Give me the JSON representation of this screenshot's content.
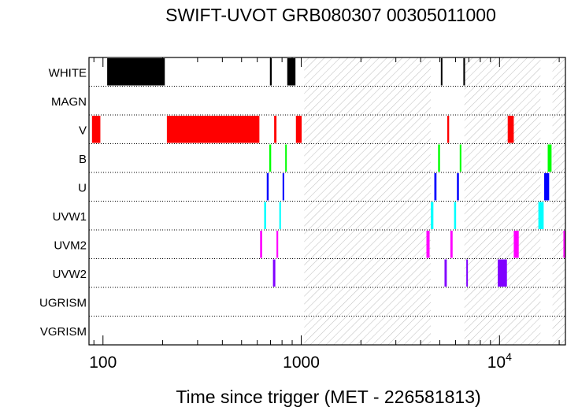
{
  "chart_data": {
    "type": "timeline",
    "title": "SWIFT-UVOT GRB080307 00305011000",
    "xlabel": "Time since trigger (MET - 226581813)",
    "xscale": "log",
    "xlim": [
      85,
      21500
    ],
    "xticks": [
      {
        "value": 100,
        "label": "100"
      },
      {
        "value": 1000,
        "label": "1000"
      },
      {
        "value": 10000,
        "label": "10",
        "exp": "4"
      }
    ],
    "rows": [
      "WHITE",
      "MAGN",
      "V",
      "B",
      "U",
      "UVW1",
      "UVM2",
      "UVW2",
      "UGRISM",
      "VGRISM"
    ],
    "shaded_intervals": [
      [
        1035,
        4500
      ],
      [
        6650,
        16100
      ],
      [
        18500,
        21500
      ]
    ],
    "exposures": [
      {
        "filter": "WHITE",
        "color": "#000000",
        "intervals": [
          [
            105,
            205
          ],
          [
            695,
            710
          ],
          [
            850,
            935
          ],
          [
            5060,
            5150
          ],
          [
            6570,
            6700
          ]
        ]
      },
      {
        "filter": "V",
        "color": "#ff0000",
        "intervals": [
          [
            88,
            97
          ],
          [
            210,
            615
          ],
          [
            730,
            750
          ],
          [
            940,
            1005
          ],
          [
            5450,
            5570
          ],
          [
            11000,
            11800
          ]
        ]
      },
      {
        "filter": "B",
        "color": "#00ff00",
        "intervals": [
          [
            690,
            705
          ],
          [
            830,
            845
          ],
          [
            4900,
            5010
          ],
          [
            6300,
            6420
          ],
          [
            17500,
            18300
          ]
        ]
      },
      {
        "filter": "U",
        "color": "#0000ff",
        "intervals": [
          [
            670,
            685
          ],
          [
            805,
            820
          ],
          [
            4690,
            4810
          ],
          [
            6100,
            6240
          ],
          [
            16800,
            17800
          ]
        ]
      },
      {
        "filter": "UVW1",
        "color": "#00ffff",
        "intervals": [
          [
            650,
            665
          ],
          [
            775,
            790
          ],
          [
            4500,
            4640
          ],
          [
            5900,
            6040
          ],
          [
            15700,
            16700
          ]
        ]
      },
      {
        "filter": "UVM2",
        "color": "#ff00ff",
        "intervals": [
          [
            620,
            635
          ],
          [
            750,
            765
          ],
          [
            4280,
            4440
          ],
          [
            5650,
            5800
          ],
          [
            11800,
            12500
          ],
          [
            21000,
            21500
          ]
        ]
      },
      {
        "filter": "UVW2",
        "color": "#8000ff",
        "intervals": [
          [
            720,
            740
          ],
          [
            5280,
            5420
          ],
          [
            6800,
            6900
          ],
          [
            9800,
            10900
          ]
        ]
      }
    ]
  }
}
